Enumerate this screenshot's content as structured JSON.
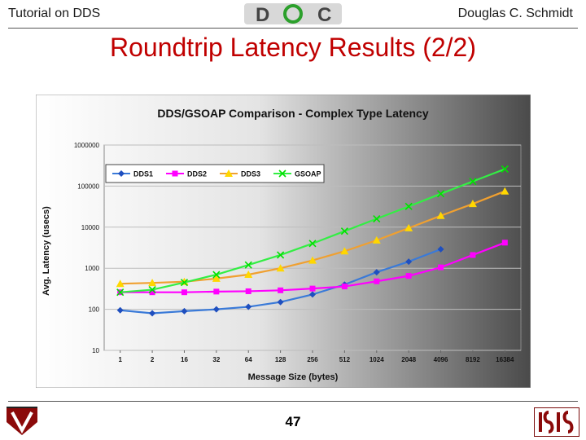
{
  "header": {
    "left": "Tutorial on DDS",
    "right": "Douglas C. Schmidt",
    "logo_letters": [
      "D",
      "O",
      "C"
    ]
  },
  "slide": {
    "title": "Roundtrip Latency Results (2/2)",
    "page_number": "47"
  },
  "colors": {
    "title": "#c00000",
    "dds1": "#1f4fbf",
    "dds2": "#ff00ff",
    "dds3": "#ffd700",
    "gsoap": "#00e000",
    "dds1_line": "#3a7ad8",
    "dds2_line": "#ff00ff",
    "dds3_line": "#f0a030",
    "gsoap_line": "#33ee44"
  },
  "chart_data": {
    "type": "line",
    "title": "DDS/GSOAP Comparison - Complex Type Latency",
    "xlabel": "Message Size (bytes)",
    "ylabel": "Avg. Latency (usecs)",
    "y_scale": "log",
    "ylim": [
      10,
      1000000
    ],
    "y_ticks": [
      10,
      100,
      1000,
      10000,
      100000,
      1000000
    ],
    "categories": [
      "1",
      "2",
      "16",
      "32",
      "64",
      "128",
      "256",
      "512",
      "1024",
      "2048",
      "4096",
      "8192",
      "16384"
    ],
    "legend_position": "top-left",
    "series": [
      {
        "name": "DDS1",
        "marker": "diamond",
        "values": [
          95,
          80,
          90,
          100,
          115,
          150,
          230,
          400,
          800,
          1450,
          2900,
          null,
          null
        ]
      },
      {
        "name": "DDS2",
        "marker": "square",
        "values": [
          260,
          260,
          260,
          270,
          275,
          290,
          320,
          360,
          480,
          650,
          1050,
          2100,
          4200
        ]
      },
      {
        "name": "DDS3",
        "marker": "triangle",
        "values": [
          420,
          440,
          470,
          560,
          700,
          1000,
          1550,
          2600,
          4800,
          9500,
          19000,
          37000,
          75000
        ]
      },
      {
        "name": "GSOAP",
        "marker": "x",
        "values": [
          260,
          300,
          450,
          700,
          1200,
          2100,
          4000,
          8000,
          16000,
          32000,
          65000,
          130000,
          260000
        ]
      }
    ]
  }
}
